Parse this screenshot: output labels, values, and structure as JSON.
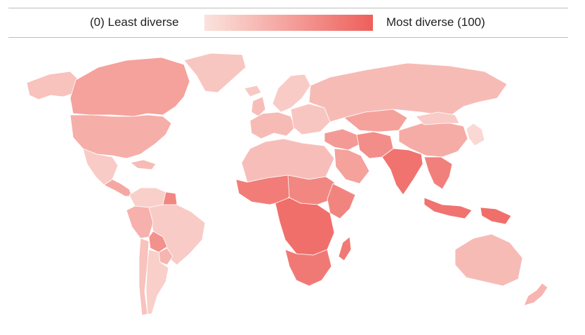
{
  "legend": {
    "low_label": "(0) Least diverse",
    "high_label": "Most diverse (100)",
    "scale_min": 0,
    "scale_max": 100,
    "color_low": "#fbe3dd",
    "color_high": "#ee5f5b"
  },
  "map": {
    "regions": [
      {
        "id": "alaska",
        "diversity": 25
      },
      {
        "id": "canada",
        "diversity": 50
      },
      {
        "id": "greenland",
        "diversity": 22
      },
      {
        "id": "usa",
        "diversity": 40
      },
      {
        "id": "mexico",
        "diversity": 18
      },
      {
        "id": "central-america",
        "diversity": 45
      },
      {
        "id": "caribbean",
        "diversity": 30
      },
      {
        "id": "colombia-venezuela",
        "diversity": 15
      },
      {
        "id": "guyana-suriname",
        "diversity": 70
      },
      {
        "id": "brazil",
        "diversity": 18
      },
      {
        "id": "peru-ecuador",
        "diversity": 38
      },
      {
        "id": "bolivia",
        "diversity": 62
      },
      {
        "id": "paraguay",
        "diversity": 35
      },
      {
        "id": "chile",
        "diversity": 25
      },
      {
        "id": "argentina",
        "diversity": 15
      },
      {
        "id": "iceland",
        "diversity": 20
      },
      {
        "id": "uk-ireland",
        "diversity": 28
      },
      {
        "id": "scandinavia",
        "diversity": 18
      },
      {
        "id": "western-europe",
        "diversity": 30
      },
      {
        "id": "eastern-europe",
        "diversity": 22
      },
      {
        "id": "russia",
        "diversity": 30
      },
      {
        "id": "north-africa",
        "diversity": 28
      },
      {
        "id": "west-africa",
        "diversity": 78
      },
      {
        "id": "chad-sudan",
        "diversity": 70
      },
      {
        "id": "horn-of-africa",
        "diversity": 72
      },
      {
        "id": "central-africa",
        "diversity": 88
      },
      {
        "id": "southern-africa",
        "diversity": 80
      },
      {
        "id": "madagascar",
        "diversity": 80
      },
      {
        "id": "middle-east",
        "diversity": 55
      },
      {
        "id": "arabia",
        "diversity": 50
      },
      {
        "id": "iran-afghanistan",
        "diversity": 65
      },
      {
        "id": "central-asia",
        "diversity": 50
      },
      {
        "id": "india",
        "diversity": 85
      },
      {
        "id": "china",
        "diversity": 42
      },
      {
        "id": "mongolia",
        "diversity": 18
      },
      {
        "id": "korea-japan",
        "diversity": 8
      },
      {
        "id": "southeast-asia",
        "diversity": 75
      },
      {
        "id": "indonesia",
        "diversity": 85
      },
      {
        "id": "papua",
        "diversity": 88
      },
      {
        "id": "australia",
        "diversity": 30
      },
      {
        "id": "new-zealand",
        "diversity": 35
      }
    ]
  }
}
